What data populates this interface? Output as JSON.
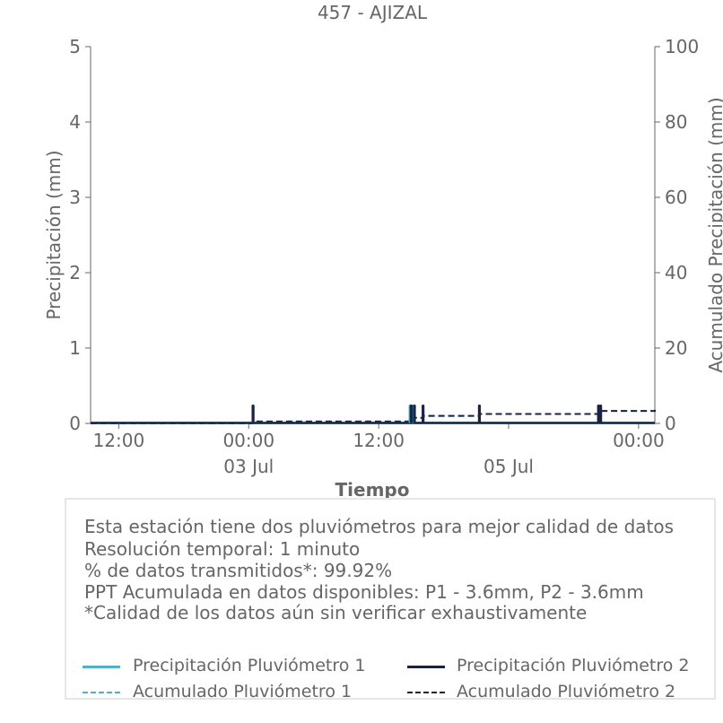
{
  "chart_data": {
    "type": "bar",
    "title": "457 - AJIZAL",
    "xlabel": "Tiempo",
    "ylabel": "Precipitación (mm)",
    "y2label": "Acumulado Precipitación (mm)",
    "ylim": [
      0,
      5
    ],
    "y2lim": [
      0,
      100
    ],
    "yticks": [
      "0",
      "1",
      "2",
      "3",
      "4",
      "5"
    ],
    "y2ticks": [
      "0",
      "20",
      "40",
      "60",
      "80",
      "100"
    ],
    "xlim_hours": [
      -14.6,
      37.5
    ],
    "xticks": [
      {
        "hours": -12,
        "label": "12:00",
        "sublabel": ""
      },
      {
        "hours": 0,
        "label": "00:00",
        "sublabel": "03 Jul"
      },
      {
        "hours": 12,
        "label": "12:00",
        "sublabel": ""
      },
      {
        "hours": 24,
        "label": "",
        "sublabel": "05 Jul"
      },
      {
        "hours": 36,
        "label": "00:00",
        "sublabel": ""
      },
      {
        "hours": 48,
        "label": "12:00",
        "sublabel": ""
      }
    ],
    "grid": false,
    "series": [
      {
        "name": "Precipitación Pluviómetro 1",
        "color": "#4fb3c8",
        "style": "bar",
        "x": [
          0.4,
          14.9,
          15.2
        ],
        "values": [
          0.25,
          0.25,
          0.25
        ]
      },
      {
        "name": "Precipitación Pluviómetro 2",
        "color": "#1c2340",
        "style": "bar",
        "x": [
          0.4,
          15.0,
          15.3,
          16.1,
          21.3,
          32.3,
          32.5
        ],
        "values": [
          0.25,
          0.25,
          0.25,
          0.25,
          0.25,
          0.25,
          0.25
        ]
      },
      {
        "name": "Acumulado Pluviómetro 1",
        "color": "#4fb3c8",
        "style": "dashed",
        "x": [
          -14.6,
          0.4,
          15.0,
          16.1,
          21.3,
          32.4,
          37.5
        ],
        "values": [
          0.0,
          0.5,
          1.5,
          2.0,
          2.5,
          3.3,
          3.6
        ]
      },
      {
        "name": "Acumulado Pluviómetro 2",
        "color": "#1c2340",
        "style": "dashed",
        "x": [
          -14.6,
          0.4,
          15.0,
          16.1,
          21.3,
          32.4,
          37.5
        ],
        "values": [
          0.0,
          0.5,
          1.5,
          2.0,
          2.5,
          3.3,
          3.6
        ]
      }
    ]
  },
  "info": {
    "line1": "Esta estación tiene dos pluviómetros para mejor calidad de datos",
    "line2": "Resolución temporal: 1 minuto",
    "line3": "% de datos transmitidos*: 99.92%",
    "line4": "PPT Acumulada en datos disponibles: P1 - 3.6mm, P2 - 3.6mm",
    "line5": "*Calidad de los datos aún sin verificar exhaustivamente"
  },
  "legend": {
    "item1": "Precipitación Pluviómetro 1",
    "item2": "Precipitación Pluviómetro 2",
    "item3": "Acumulado Pluviómetro 1",
    "item4": "Acumulado Pluviómetro 2"
  },
  "colors": {
    "p1": "#4fb3c8",
    "p2": "#1c2340",
    "axis": "#666666"
  }
}
